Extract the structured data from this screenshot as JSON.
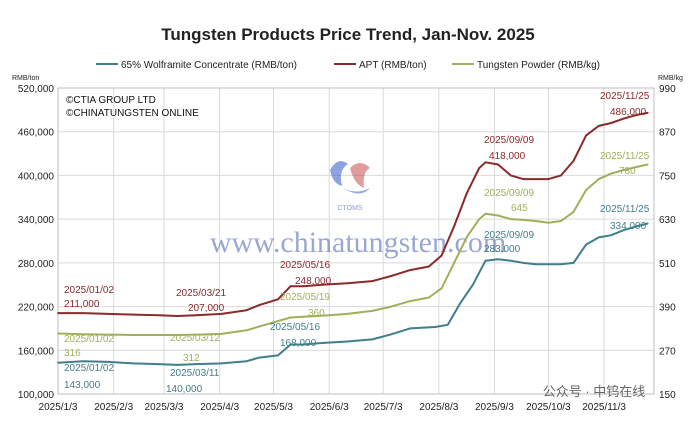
{
  "chart_data": {
    "type": "line",
    "title": "Tungsten Products Price Trend, Jan-Nov. 2025",
    "left_axis_unit": "RMB/ton",
    "right_axis_unit": "RMB/kg",
    "left_ylim": [
      100000,
      520000
    ],
    "right_ylim": [
      150,
      990
    ],
    "left_ticks": [
      "520,000",
      "460,000",
      "400,000",
      "340,000",
      "280,000",
      "220,000",
      "160,000",
      "100,000"
    ],
    "right_ticks": [
      "990",
      "870",
      "750",
      "630",
      "510",
      "390",
      "270",
      "150"
    ],
    "x_ticks": [
      "2025/1/3",
      "2025/2/3",
      "2025/3/3",
      "2025/4/3",
      "2025/5/3",
      "2025/6/3",
      "2025/7/3",
      "2025/8/3",
      "2025/9/3",
      "2025/10/3",
      "2025/11/3"
    ],
    "grid": true,
    "legend": "top",
    "series": [
      {
        "name": "65% Wolframite Concentrate (RMB/ton)",
        "axis": "left",
        "color": "#3f7f8c",
        "points": [
          [
            0,
            143000
          ],
          [
            2,
            145000
          ],
          [
            4,
            144000
          ],
          [
            6,
            142000
          ],
          [
            8,
            141000
          ],
          [
            9.5,
            140000
          ],
          [
            11,
            141000
          ],
          [
            13,
            142000
          ],
          [
            15,
            145000
          ],
          [
            16,
            150000
          ],
          [
            17.5,
            153000
          ],
          [
            18.5,
            168000
          ],
          [
            19.5,
            168000
          ],
          [
            21,
            170000
          ],
          [
            23,
            172000
          ],
          [
            25,
            175000
          ],
          [
            26.5,
            182000
          ],
          [
            28,
            190000
          ],
          [
            30,
            192000
          ],
          [
            31,
            195000
          ],
          [
            32,
            225000
          ],
          [
            33,
            250000
          ],
          [
            34,
            283000
          ],
          [
            35,
            285000
          ],
          [
            36,
            283000
          ],
          [
            37,
            280000
          ],
          [
            38,
            278000
          ],
          [
            39,
            278000
          ],
          [
            40,
            278000
          ],
          [
            41,
            280000
          ],
          [
            42,
            305000
          ],
          [
            43,
            315000
          ],
          [
            44,
            318000
          ],
          [
            45,
            325000
          ],
          [
            46,
            330000
          ],
          [
            46.9,
            334000
          ]
        ]
      },
      {
        "name": "APT (RMB/ton)",
        "axis": "left",
        "color": "#8b2a2a",
        "points": [
          [
            0,
            211000
          ],
          [
            2,
            211000
          ],
          [
            4,
            210000
          ],
          [
            6,
            209000
          ],
          [
            8,
            208000
          ],
          [
            9.5,
            207000
          ],
          [
            11,
            208000
          ],
          [
            13,
            210000
          ],
          [
            15,
            215000
          ],
          [
            16,
            222000
          ],
          [
            17.5,
            230000
          ],
          [
            18.5,
            248000
          ],
          [
            19.5,
            248000
          ],
          [
            21,
            250000
          ],
          [
            23,
            252000
          ],
          [
            25,
            255000
          ],
          [
            26.5,
            262000
          ],
          [
            28,
            270000
          ],
          [
            29.5,
            275000
          ],
          [
            30.5,
            290000
          ],
          [
            31.5,
            330000
          ],
          [
            32.5,
            375000
          ],
          [
            33.5,
            410000
          ],
          [
            34,
            418000
          ],
          [
            35,
            415000
          ],
          [
            36,
            400000
          ],
          [
            37,
            395000
          ],
          [
            38,
            395000
          ],
          [
            39,
            395000
          ],
          [
            40,
            400000
          ],
          [
            41,
            420000
          ],
          [
            42,
            455000
          ],
          [
            43,
            468000
          ],
          [
            44,
            472000
          ],
          [
            45,
            478000
          ],
          [
            46,
            483000
          ],
          [
            46.9,
            486000
          ]
        ]
      },
      {
        "name": "Tungsten Powder (RMB/kg)",
        "axis": "right",
        "color": "#9fb05c",
        "points": [
          [
            0,
            316
          ],
          [
            2,
            314
          ],
          [
            4,
            313
          ],
          [
            6,
            312
          ],
          [
            8,
            312
          ],
          [
            9.5,
            312
          ],
          [
            11,
            313
          ],
          [
            13,
            315
          ],
          [
            15,
            325
          ],
          [
            16,
            335
          ],
          [
            17.5,
            350
          ],
          [
            18.5,
            360
          ],
          [
            19.5,
            362
          ],
          [
            21,
            365
          ],
          [
            23,
            370
          ],
          [
            25,
            378
          ],
          [
            26.5,
            390
          ],
          [
            28,
            405
          ],
          [
            29.5,
            415
          ],
          [
            30.5,
            440
          ],
          [
            31.5,
            510
          ],
          [
            32.5,
            580
          ],
          [
            33.5,
            630
          ],
          [
            34,
            645
          ],
          [
            35,
            640
          ],
          [
            36,
            630
          ],
          [
            37,
            628
          ],
          [
            38,
            625
          ],
          [
            39,
            620
          ],
          [
            40,
            625
          ],
          [
            41,
            650
          ],
          [
            42,
            710
          ],
          [
            43,
            740
          ],
          [
            44,
            755
          ],
          [
            45,
            765
          ],
          [
            46,
            773
          ],
          [
            46.9,
            780
          ]
        ]
      }
    ],
    "annotations": [
      {
        "date": "2025/01/02",
        "value": "211,000",
        "series": "APT (RMB/ton)"
      },
      {
        "date": "2025/03/21",
        "value": "207,000",
        "series": "APT (RMB/ton)"
      },
      {
        "date": "2025/05/16",
        "value": "248,000",
        "series": "APT (RMB/ton)"
      },
      {
        "date": "2025/09/09",
        "value": "418,000",
        "series": "APT (RMB/ton)"
      },
      {
        "date": "2025/11/25",
        "value": "486,000",
        "series": "APT (RMB/ton)"
      },
      {
        "date": "2025/01/02",
        "value": "316",
        "series": "Tungsten Powder (RMB/kg)"
      },
      {
        "date": "2025/03/12",
        "value": "312",
        "series": "Tungsten Powder (RMB/kg)"
      },
      {
        "date": "2025/05/19",
        "value": "360",
        "series": "Tungsten Powder (RMB/kg)"
      },
      {
        "date": "2025/09/09",
        "value": "645",
        "series": "Tungsten Powder (RMB/kg)"
      },
      {
        "date": "2025/11/25",
        "value": "780",
        "series": "Tungsten Powder (RMB/kg)"
      },
      {
        "date": "2025/01/02",
        "value": "143,000",
        "series": "65% Wolframite Concentrate (RMB/ton)"
      },
      {
        "date": "2025/03/11",
        "value": "140,000",
        "series": "65% Wolframite Concentrate (RMB/ton)"
      },
      {
        "date": "2025/05/16",
        "value": "168,000",
        "series": "65% Wolframite Concentrate (RMB/ton)"
      },
      {
        "date": "2025/09/09",
        "value": "283,000",
        "series": "65% Wolframite Concentrate (RMB/ton)"
      },
      {
        "date": "2025/11/25",
        "value": "334,000",
        "series": "65% Wolframite Concentrate (RMB/ton)"
      }
    ]
  },
  "credits": [
    "©CTIA GROUP LTD",
    "©CHINATUNGSTEN ONLINE"
  ],
  "watermark": {
    "text": "www.chinatungsten.com",
    "logo_text": "CTOMS"
  },
  "wechat_mark": "公众号 · 中钨在线"
}
